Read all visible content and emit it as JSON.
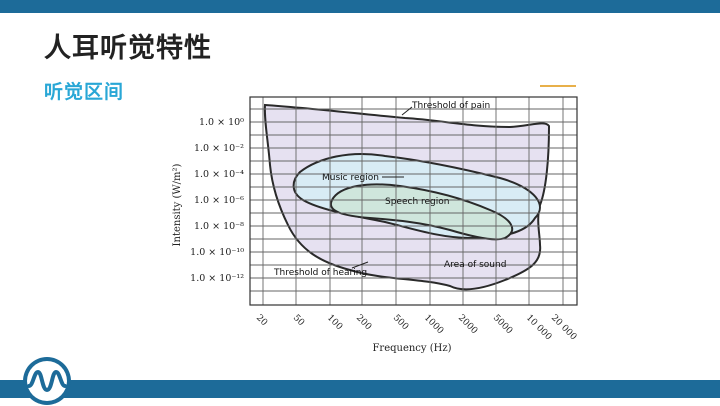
{
  "slide": {
    "title": "人耳听觉特性",
    "subtitle": "听觉区间"
  },
  "figure": {
    "ylabel": "Intensity (W/m²)",
    "xlabel": "Frequency (Hz)",
    "y_ticks": [
      "1.0 × 10⁰",
      "1.0 × 10⁻²",
      "1.0 × 10⁻⁴",
      "1.0 × 10⁻⁶",
      "1.0 × 10⁻⁸",
      "1.0 × 10⁻¹⁰",
      "1.0 × 10⁻¹²"
    ],
    "x_ticks": [
      "20",
      "50",
      "100",
      "200",
      "500",
      "1000",
      "2000",
      "5000",
      "10 000",
      "20 000"
    ],
    "labels": {
      "threshold_of_pain": "Threshold of pain",
      "music_region": "Music region",
      "speech_region": "Speech region",
      "threshold_of_hearing": "Threshold of hearing",
      "area_of_sound": "Area of sound"
    },
    "colors": {
      "area_of_sound": "#e6e1f1",
      "music_region": "#d8ecf5",
      "speech_region": "#cfe6dc",
      "grid": "#666666",
      "outline": "#2a2a2a"
    }
  },
  "theme": {
    "bar_color": "#1d6b99",
    "subtitle_color": "#29a7d6",
    "accent_color": "#e8b04a"
  }
}
